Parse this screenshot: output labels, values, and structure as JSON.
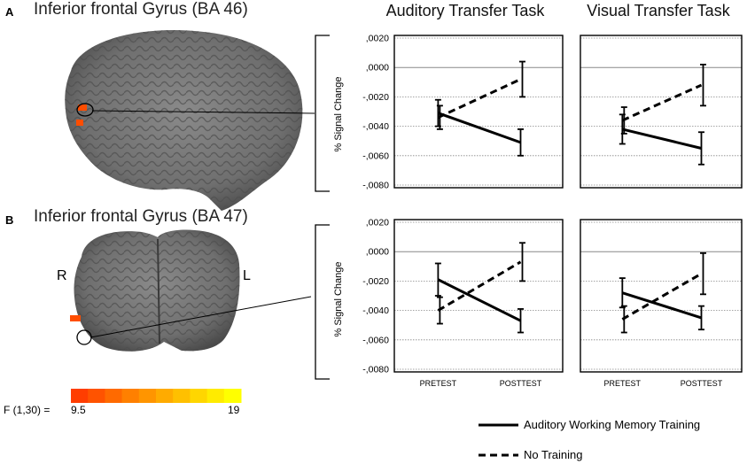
{
  "panels": [
    {
      "letter": "A",
      "region": "Inferior frontal Gyrus (BA 46)"
    },
    {
      "letter": "B",
      "region": "Inferior frontal Gyrus (BA 47)"
    }
  ],
  "columns": [
    "Auditory Transfer Task",
    "Visual Transfer Task"
  ],
  "hemisphere_labels": {
    "right": "R",
    "left": "L"
  },
  "color_scale": {
    "label": "F (1,30)  =",
    "min": "9.5",
    "max": "19",
    "colors": [
      "#ff3d00",
      "#ff5300",
      "#ff6a00",
      "#ff8000",
      "#ff9500",
      "#ffab00",
      "#ffc000",
      "#ffd600",
      "#ffeb00",
      "#ffff00"
    ]
  },
  "legend": [
    {
      "label": "Auditory Working  Memory Training",
      "style": "solid"
    },
    {
      "label": "No Training",
      "style": "dashed"
    }
  ],
  "chart_data": [
    {
      "type": "line",
      "panel": "A",
      "title": "Auditory Transfer Task",
      "ylabel": "% Signal Change",
      "categories": [
        "PRETEST",
        "POSTTEST"
      ],
      "ylim": [
        -0.008,
        0.002
      ],
      "yticks": [
        ",0020",
        ",0000",
        "-,0020",
        "-,0040",
        "-,0060",
        "-,0080"
      ],
      "grid": true,
      "series": [
        {
          "name": "Auditory Working  Memory Training",
          "style": "solid",
          "values": [
            -0.0031,
            -0.0051
          ],
          "err": [
            0.0009,
            0.0009
          ]
        },
        {
          "name": "No Training",
          "style": "dashed",
          "values": [
            -0.0034,
            -0.0008
          ],
          "err": [
            0.0008,
            0.0012
          ]
        }
      ]
    },
    {
      "type": "line",
      "panel": "A",
      "title": "Visual Transfer Task",
      "ylabel": "",
      "categories": [
        "PRETEST",
        "POSTTEST"
      ],
      "ylim": [
        -0.008,
        0.002
      ],
      "yticks": [],
      "grid": true,
      "series": [
        {
          "name": "Auditory Working  Memory Training",
          "style": "solid",
          "values": [
            -0.0042,
            -0.0055
          ],
          "err": [
            0.001,
            0.0011
          ]
        },
        {
          "name": "No Training",
          "style": "dashed",
          "values": [
            -0.0036,
            -0.0012
          ],
          "err": [
            0.0009,
            0.0014
          ]
        }
      ]
    },
    {
      "type": "line",
      "panel": "B",
      "title": "",
      "ylabel": "% Signal Change",
      "categories": [
        "PRETEST",
        "POSTTEST"
      ],
      "ylim": [
        -0.008,
        0.002
      ],
      "yticks": [
        ",0020",
        ",0000",
        "-,0020",
        "-,0040",
        "-,0060",
        "-,0080"
      ],
      "grid": true,
      "xticks": [
        "PRETEST",
        "POSTTEST"
      ],
      "series": [
        {
          "name": "Auditory Working  Memory Training",
          "style": "solid",
          "values": [
            -0.0019,
            -0.0047
          ],
          "err": [
            0.0011,
            0.0008
          ]
        },
        {
          "name": "No Training",
          "style": "dashed",
          "values": [
            -0.004,
            -0.0007
          ],
          "err": [
            0.0009,
            0.0013
          ]
        }
      ]
    },
    {
      "type": "line",
      "panel": "B",
      "title": "",
      "ylabel": "",
      "categories": [
        "PRETEST",
        "POSTTEST"
      ],
      "ylim": [
        -0.008,
        0.002
      ],
      "yticks": [],
      "grid": true,
      "xticks": [
        "PRETEST",
        "POSTTEST"
      ],
      "series": [
        {
          "name": "Auditory Working  Memory Training",
          "style": "solid",
          "values": [
            -0.0028,
            -0.0045
          ],
          "err": [
            0.001,
            0.0008
          ]
        },
        {
          "name": "No Training",
          "style": "dashed",
          "values": [
            -0.0046,
            -0.0015
          ],
          "err": [
            0.0009,
            0.0014
          ]
        }
      ]
    }
  ]
}
